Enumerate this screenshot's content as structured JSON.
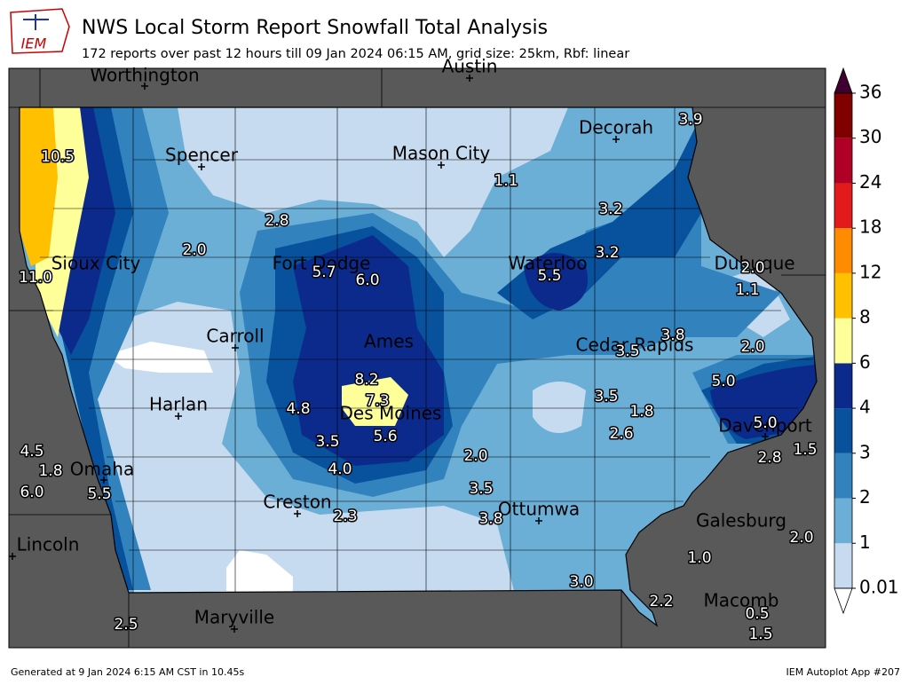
{
  "header": {
    "logo": "IEM",
    "title": "NWS Local Storm Report Snowfall Total Analysis",
    "subtitle": "172 reports over past 12 hours till 09 Jan 2024 06:15 AM, grid size: 25km, Rbf: linear"
  },
  "cities": [
    "Worthington",
    "Austin",
    "Spencer",
    "Mason City",
    "Decorah",
    "Sioux City",
    "Fort Dodge",
    "Waterloo",
    "Dubuque",
    "Carroll",
    "Ames",
    "Cedar Rapids",
    "Harlan",
    "Des Moines",
    "Davenport",
    "Omaha",
    "Creston",
    "Ottumwa",
    "Galesburg",
    "Lincoln",
    "Maryville",
    "Macomb"
  ],
  "snow_reports": [
    "10.5",
    "11.0",
    "2.8",
    "2.0",
    "5.7",
    "6.0",
    "1.1",
    "3.9",
    "3.2",
    "3.2",
    "5.5",
    "2.0",
    "1.1",
    "3.8",
    "3.5",
    "2.0",
    "5.0",
    "8.2",
    "7.3",
    "5.6",
    "4.8",
    "3.5",
    "4.0",
    "3.5",
    "1.8",
    "2.6",
    "5.0",
    "2.8",
    "1.5",
    "2.0",
    "3.5",
    "3.8",
    "2.3",
    "4.5",
    "1.8",
    "6.0",
    "5.5",
    "1.0",
    "2.0",
    "3.0",
    "2.2",
    "0.5",
    "1.5",
    "2.5"
  ],
  "colorbar": {
    "levels": [
      0.01,
      1,
      2,
      3,
      4,
      6,
      8,
      12,
      18,
      24,
      30,
      36
    ],
    "colors": [
      "#c6dbef",
      "#6baed6",
      "#3182bd",
      "#08519c",
      "#0c2a8c",
      "#ffff99",
      "#ffc000",
      "#ff8c00",
      "#e31a1c",
      "#b10026",
      "#800000"
    ],
    "over_color": "#3f0030",
    "under_color": "#ffffff"
  },
  "footer": {
    "left": "Generated at 9 Jan 2024 6:15 AM CST in 10.45s",
    "right": "IEM Autoplot App #207"
  }
}
